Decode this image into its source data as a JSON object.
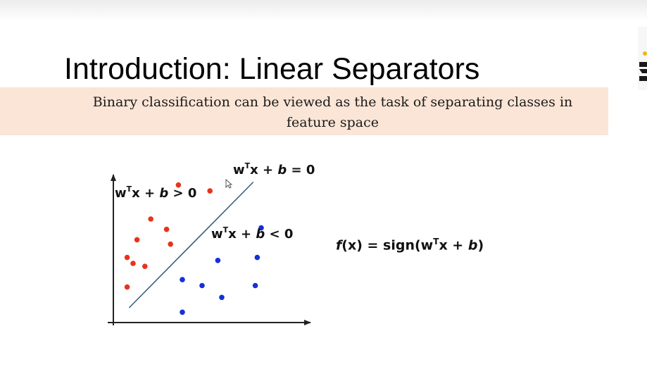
{
  "slide": {
    "title": "Introduction:  Linear Separators",
    "subtitle": "Binary classification can be viewed as the task of separating classes in feature space"
  },
  "equations": {
    "boundary": {
      "main": "w",
      "sup": "T",
      "rest": "x + ",
      "var": "b",
      "end": " = 0"
    },
    "positive": {
      "main": "w",
      "sup": "T",
      "rest": "x + ",
      "var": "b",
      "end": " > 0"
    },
    "negative": {
      "main": "w",
      "sup": "T",
      "rest": "x + ",
      "var": "b",
      "end": " < 0"
    },
    "decision_function": {
      "fname": "f",
      "arg": "(x) = sign(w",
      "sup": "T",
      "rest": "x + ",
      "var": "b",
      "end": ")"
    }
  },
  "chart_data": {
    "type": "scatter",
    "title": "",
    "xlabel": "",
    "ylabel": "",
    "xlim": [
      0,
      100
    ],
    "ylim": [
      0,
      100
    ],
    "grid": false,
    "series": [
      {
        "color": "#e8331c",
        "points": [
          [
            33,
            93
          ],
          [
            49,
            89
          ],
          [
            19,
            70
          ],
          [
            27,
            63
          ],
          [
            12,
            56
          ],
          [
            29,
            53
          ],
          [
            7,
            44
          ],
          [
            10,
            40
          ],
          [
            16,
            38
          ],
          [
            7,
            24
          ]
        ]
      },
      {
        "color": "#1530d8",
        "points": [
          [
            75,
            64
          ],
          [
            53,
            42
          ],
          [
            73,
            44
          ],
          [
            35,
            29
          ],
          [
            45,
            25
          ],
          [
            72,
            25
          ],
          [
            55,
            17
          ],
          [
            35,
            7
          ]
        ]
      }
    ],
    "separator": {
      "color": "#3b5f7a",
      "from": [
        8,
        10
      ],
      "to": [
        71,
        95
      ]
    }
  },
  "colors": {
    "band": "#fbe5d6",
    "axis": "#222222"
  }
}
